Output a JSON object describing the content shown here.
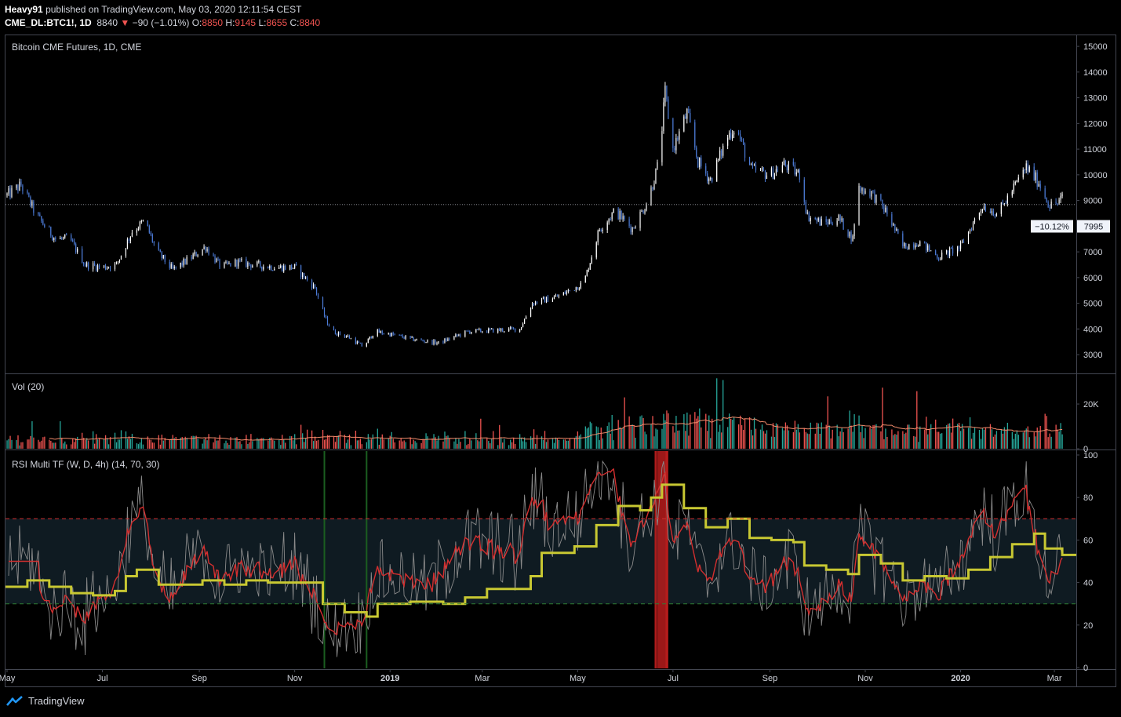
{
  "header": {
    "author": "Heavy91",
    "published_text": "published on TradingView.com, May 03, 2020 12:11:54 CEST",
    "symbol": "CME_DL:BTC1!, 1D",
    "last": "8840",
    "change": "−90 (−1.01%)",
    "o_label": "O:",
    "o_value": "8850",
    "h_label": "H:",
    "h_value": "9145",
    "l_label": "L:",
    "l_value": "8655",
    "c_label": "C:",
    "c_value": "8840"
  },
  "footer": {
    "brand": "TradingView",
    "logo_icon": "tradingview-logo-icon"
  },
  "colors": {
    "up": "#ffffff",
    "down": "#4c7bd6",
    "vol_up": "#26a69a",
    "vol_down": "#ef5350",
    "vol_ma": "#f28b6b",
    "rsi_w": "#c8c832",
    "rsi_d": "#d32f2f",
    "rsi_4h": "#8a8a8a",
    "ob_line": "#d32f2f",
    "os_line": "#2e7d32",
    "band": "#0f1b22",
    "axis_text": "#d1d4dc"
  },
  "chart_data": [
    {
      "type": "candlestick",
      "title": "Bitcoin CME Futures, 1D, CME",
      "y_ticks": [
        "15000",
        "14000",
        "13000",
        "12000",
        "11000",
        "10000",
        "9000",
        "8000",
        "7000",
        "6000",
        "5000",
        "4000",
        "3000"
      ],
      "ylim": [
        2300,
        15400
      ],
      "price_line": 8840,
      "price_tag": "7995",
      "percent_tag": "−10.12%",
      "series_close": [
        {
          "date": "2018-05-01",
          "close": 9200
        },
        {
          "date": "2018-05-10",
          "close": 9600
        },
        {
          "date": "2018-05-20",
          "close": 8400
        },
        {
          "date": "2018-06-01",
          "close": 7500
        },
        {
          "date": "2018-06-10",
          "close": 7500
        },
        {
          "date": "2018-06-20",
          "close": 6500
        },
        {
          "date": "2018-07-01",
          "close": 6400
        },
        {
          "date": "2018-07-10",
          "close": 6500
        },
        {
          "date": "2018-07-20",
          "close": 7800
        },
        {
          "date": "2018-07-28",
          "close": 8200
        },
        {
          "date": "2018-08-05",
          "close": 7000
        },
        {
          "date": "2018-08-15",
          "close": 6300
        },
        {
          "date": "2018-08-25",
          "close": 6700
        },
        {
          "date": "2018-09-05",
          "close": 7200
        },
        {
          "date": "2018-09-15",
          "close": 6400
        },
        {
          "date": "2018-09-25",
          "close": 6600
        },
        {
          "date": "2018-10-05",
          "close": 6500
        },
        {
          "date": "2018-10-20",
          "close": 6400
        },
        {
          "date": "2018-11-01",
          "close": 6400
        },
        {
          "date": "2018-11-14",
          "close": 5600
        },
        {
          "date": "2018-11-20",
          "close": 4500
        },
        {
          "date": "2018-11-25",
          "close": 3900
        },
        {
          "date": "2018-12-05",
          "close": 3700
        },
        {
          "date": "2018-12-15",
          "close": 3300
        },
        {
          "date": "2018-12-22",
          "close": 3900
        },
        {
          "date": "2019-01-01",
          "close": 3800
        },
        {
          "date": "2019-01-15",
          "close": 3600
        },
        {
          "date": "2019-02-01",
          "close": 3450
        },
        {
          "date": "2019-02-20",
          "close": 3900
        },
        {
          "date": "2019-03-10",
          "close": 3950
        },
        {
          "date": "2019-03-25",
          "close": 4000
        },
        {
          "date": "2019-04-02",
          "close": 5000
        },
        {
          "date": "2019-04-20",
          "close": 5300
        },
        {
          "date": "2019-05-05",
          "close": 5800
        },
        {
          "date": "2019-05-15",
          "close": 7900
        },
        {
          "date": "2019-05-25",
          "close": 8600
        },
        {
          "date": "2019-06-05",
          "close": 7900
        },
        {
          "date": "2019-06-15",
          "close": 9000
        },
        {
          "date": "2019-06-22",
          "close": 10500
        },
        {
          "date": "2019-06-26",
          "close": 13200
        },
        {
          "date": "2019-07-01",
          "close": 11000
        },
        {
          "date": "2019-07-10",
          "close": 12400
        },
        {
          "date": "2019-07-17",
          "close": 10500
        },
        {
          "date": "2019-07-25",
          "close": 9800
        },
        {
          "date": "2019-08-05",
          "close": 11500
        },
        {
          "date": "2019-08-10",
          "close": 11900
        },
        {
          "date": "2019-08-20",
          "close": 10200
        },
        {
          "date": "2019-09-01",
          "close": 10000
        },
        {
          "date": "2019-09-10",
          "close": 10400
        },
        {
          "date": "2019-09-20",
          "close": 10000
        },
        {
          "date": "2019-09-25",
          "close": 8400
        },
        {
          "date": "2019-10-05",
          "close": 8100
        },
        {
          "date": "2019-10-15",
          "close": 8300
        },
        {
          "date": "2019-10-24",
          "close": 7500
        },
        {
          "date": "2019-10-27",
          "close": 9500
        },
        {
          "date": "2019-11-05",
          "close": 9300
        },
        {
          "date": "2019-11-15",
          "close": 8500
        },
        {
          "date": "2019-11-25",
          "close": 7200
        },
        {
          "date": "2019-12-05",
          "close": 7400
        },
        {
          "date": "2019-12-18",
          "close": 6800
        },
        {
          "date": "2020-01-01",
          "close": 7200
        },
        {
          "date": "2020-01-15",
          "close": 8800
        },
        {
          "date": "2020-01-25",
          "close": 8500
        },
        {
          "date": "2020-02-05",
          "close": 9600
        },
        {
          "date": "2020-02-12",
          "close": 10300
        },
        {
          "date": "2020-02-20",
          "close": 9700
        },
        {
          "date": "2020-02-27",
          "close": 8800
        },
        {
          "date": "2020-03-03",
          "close": 8900
        },
        {
          "date": "2020-03-06",
          "close": 9100
        }
      ]
    },
    {
      "type": "bar",
      "title": "Vol (20)",
      "y_ticks": [
        "20K",
        "0"
      ],
      "ylim": [
        0,
        33000
      ]
    },
    {
      "type": "line",
      "title": "RSI Multi TF (W, D, 4h) (14, 70, 30)",
      "y_ticks": [
        "100",
        "80",
        "60",
        "40",
        "20",
        "0"
      ],
      "ylim": [
        0,
        100
      ],
      "overbought": 70,
      "oversold": 30,
      "series": [
        {
          "name": "W",
          "values": [
            {
              "date": "2018-05-01",
              "rsi": 38
            },
            {
              "date": "2018-05-14",
              "rsi": 41
            },
            {
              "date": "2018-05-28",
              "rsi": 38
            },
            {
              "date": "2018-06-11",
              "rsi": 35
            },
            {
              "date": "2018-06-25",
              "rsi": 34
            },
            {
              "date": "2018-07-09",
              "rsi": 36
            },
            {
              "date": "2018-07-16",
              "rsi": 43
            },
            {
              "date": "2018-07-23",
              "rsi": 46
            },
            {
              "date": "2018-08-06",
              "rsi": 39
            },
            {
              "date": "2018-08-20",
              "rsi": 39
            },
            {
              "date": "2018-09-03",
              "rsi": 41
            },
            {
              "date": "2018-09-17",
              "rsi": 39
            },
            {
              "date": "2018-10-01",
              "rsi": 41
            },
            {
              "date": "2018-10-15",
              "rsi": 40
            },
            {
              "date": "2018-11-05",
              "rsi": 40
            },
            {
              "date": "2018-11-19",
              "rsi": 30
            },
            {
              "date": "2018-12-03",
              "rsi": 26
            },
            {
              "date": "2018-12-17",
              "rsi": 24
            },
            {
              "date": "2018-12-24",
              "rsi": 30
            },
            {
              "date": "2019-01-14",
              "rsi": 31
            },
            {
              "date": "2019-02-04",
              "rsi": 30
            },
            {
              "date": "2019-02-18",
              "rsi": 33
            },
            {
              "date": "2019-03-04",
              "rsi": 37
            },
            {
              "date": "2019-03-18",
              "rsi": 37
            },
            {
              "date": "2019-04-01",
              "rsi": 43
            },
            {
              "date": "2019-04-08",
              "rsi": 54
            },
            {
              "date": "2019-04-29",
              "rsi": 57
            },
            {
              "date": "2019-05-13",
              "rsi": 67
            },
            {
              "date": "2019-05-27",
              "rsi": 76
            },
            {
              "date": "2019-06-10",
              "rsi": 74
            },
            {
              "date": "2019-06-17",
              "rsi": 80
            },
            {
              "date": "2019-06-24",
              "rsi": 86
            },
            {
              "date": "2019-07-08",
              "rsi": 75
            },
            {
              "date": "2019-07-22",
              "rsi": 66
            },
            {
              "date": "2019-08-05",
              "rsi": 70
            },
            {
              "date": "2019-08-19",
              "rsi": 61
            },
            {
              "date": "2019-09-02",
              "rsi": 60
            },
            {
              "date": "2019-09-16",
              "rsi": 59
            },
            {
              "date": "2019-09-23",
              "rsi": 48
            },
            {
              "date": "2019-10-07",
              "rsi": 46
            },
            {
              "date": "2019-10-21",
              "rsi": 44
            },
            {
              "date": "2019-10-28",
              "rsi": 53
            },
            {
              "date": "2019-11-11",
              "rsi": 49
            },
            {
              "date": "2019-11-25",
              "rsi": 41
            },
            {
              "date": "2019-12-09",
              "rsi": 43
            },
            {
              "date": "2019-12-23",
              "rsi": 42
            },
            {
              "date": "2020-01-06",
              "rsi": 46
            },
            {
              "date": "2020-01-20",
              "rsi": 52
            },
            {
              "date": "2020-02-03",
              "rsi": 58
            },
            {
              "date": "2020-02-17",
              "rsi": 63
            },
            {
              "date": "2020-02-24",
              "rsi": 56
            },
            {
              "date": "2020-03-06",
              "rsi": 53
            }
          ]
        }
      ],
      "highlights": [
        {
          "kind": "oversold",
          "date": "2018-11-20"
        },
        {
          "kind": "oversold",
          "date": "2018-12-17"
        },
        {
          "kind": "overbought",
          "date": "2019-06-20"
        },
        {
          "kind": "overbought",
          "date": "2019-06-27"
        }
      ]
    }
  ],
  "x_axis": {
    "ticks": [
      {
        "label": "May",
        "date": "2018-05-01",
        "bold": false
      },
      {
        "label": "Jul",
        "date": "2018-07-01",
        "bold": false
      },
      {
        "label": "Sep",
        "date": "2018-09-01",
        "bold": false
      },
      {
        "label": "Nov",
        "date": "2018-11-01",
        "bold": false
      },
      {
        "label": "2019",
        "date": "2019-01-01",
        "bold": true
      },
      {
        "label": "Mar",
        "date": "2019-03-01",
        "bold": false
      },
      {
        "label": "May",
        "date": "2019-05-01",
        "bold": false
      },
      {
        "label": "Jul",
        "date": "2019-07-01",
        "bold": false
      },
      {
        "label": "Sep",
        "date": "2019-09-01",
        "bold": false
      },
      {
        "label": "Nov",
        "date": "2019-11-01",
        "bold": false
      },
      {
        "label": "2020",
        "date": "2020-01-01",
        "bold": true
      },
      {
        "label": "Mar",
        "date": "2020-03-01",
        "bold": false
      }
    ],
    "start": "2018-04-30",
    "end": "2020-03-15"
  }
}
